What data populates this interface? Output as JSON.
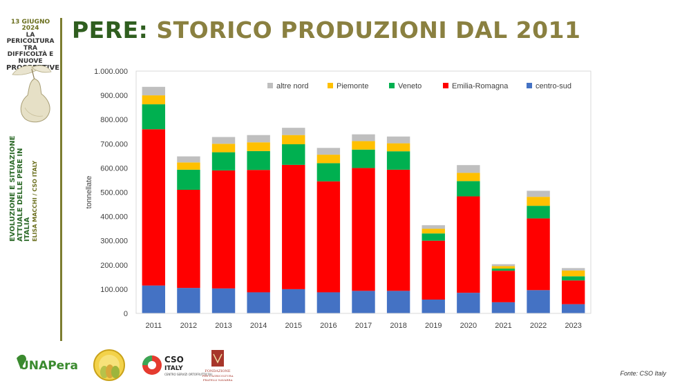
{
  "sidebar": {
    "date": "13 GIUGNO 2024",
    "event_line1": "LA PERICOLTURA TRA",
    "event_line2": "DIFFICOLTÀ E NUOVE",
    "event_line3": "PROSPETTIVE",
    "talk_line1": "EVOLUZIONE E SITUAZIONE",
    "talk_line2": "ATTUALE DELLE PERE IN ITALIA",
    "speaker": "ELISA MACCHI / CSO ITALY"
  },
  "title_part1": "PERE:",
  "title_part2": "STORICO PRODUZIONI DAL 2011",
  "source": "Fonte: CSO Italy",
  "logos": {
    "unapera": "UNAPera",
    "cso_line1": "CSO",
    "cso_line2": "ITALY",
    "cso_sub": "CENTRO SERVIZI ORTOFRUTTICOLI",
    "fondazione_line1": "FONDAZIONE",
    "fondazione_line2": "PER L'AGRICOLTURA",
    "fondazione_line3": "FRATELLI NAVARRA"
  },
  "colors": {
    "centro_sud": "#4472c4",
    "emilia_romagna": "#ff0000",
    "veneto": "#00b050",
    "piemonte": "#ffc000",
    "altre_nord": "#bfbfbf",
    "title_dark": "#2f5e1f",
    "title_olive": "#8a8040"
  },
  "chart_data": {
    "type": "bar",
    "stacked": true,
    "categories": [
      "2011",
      "2012",
      "2013",
      "2014",
      "2015",
      "2016",
      "2017",
      "2018",
      "2019",
      "2020",
      "2021",
      "2022",
      "2023"
    ],
    "ylabel": "tonnellate",
    "ylim": [
      0,
      1000000
    ],
    "yticks": [
      "0",
      "100.000",
      "200.000",
      "300.000",
      "400.000",
      "500.000",
      "600.000",
      "700.000",
      "800.000",
      "900.000",
      "1.000.000"
    ],
    "legend_position": "top-right",
    "grid": false,
    "series": [
      {
        "name": "centro-sud",
        "color": "#4472c4",
        "values": [
          115000,
          105000,
          103000,
          87000,
          100000,
          87000,
          93000,
          93000,
          57000,
          85000,
          46000,
          96000,
          38000
        ]
      },
      {
        "name": "Emilia-Romagna",
        "color": "#ff0000",
        "values": [
          645000,
          405000,
          487000,
          505000,
          513000,
          458000,
          507000,
          500000,
          243000,
          398000,
          130000,
          296000,
          98000
        ]
      },
      {
        "name": "Veneto",
        "color": "#00b050",
        "values": [
          103000,
          83000,
          75000,
          78000,
          85000,
          75000,
          76000,
          76000,
          30000,
          63000,
          9000,
          52000,
          17000
        ]
      },
      {
        "name": "Piemonte",
        "color": "#ffc000",
        "values": [
          37000,
          30000,
          35000,
          36000,
          38000,
          35000,
          35000,
          33000,
          19000,
          34000,
          10000,
          37000,
          24000
        ]
      },
      {
        "name": "altre nord",
        "color": "#bfbfbf",
        "values": [
          35000,
          25000,
          28000,
          30000,
          30000,
          28000,
          28000,
          28000,
          15000,
          32000,
          8000,
          25000,
          10000
        ]
      }
    ],
    "legend_order": [
      "altre nord",
      "Piemonte",
      "Veneto",
      "Emilia-Romagna",
      "centro-sud"
    ]
  }
}
